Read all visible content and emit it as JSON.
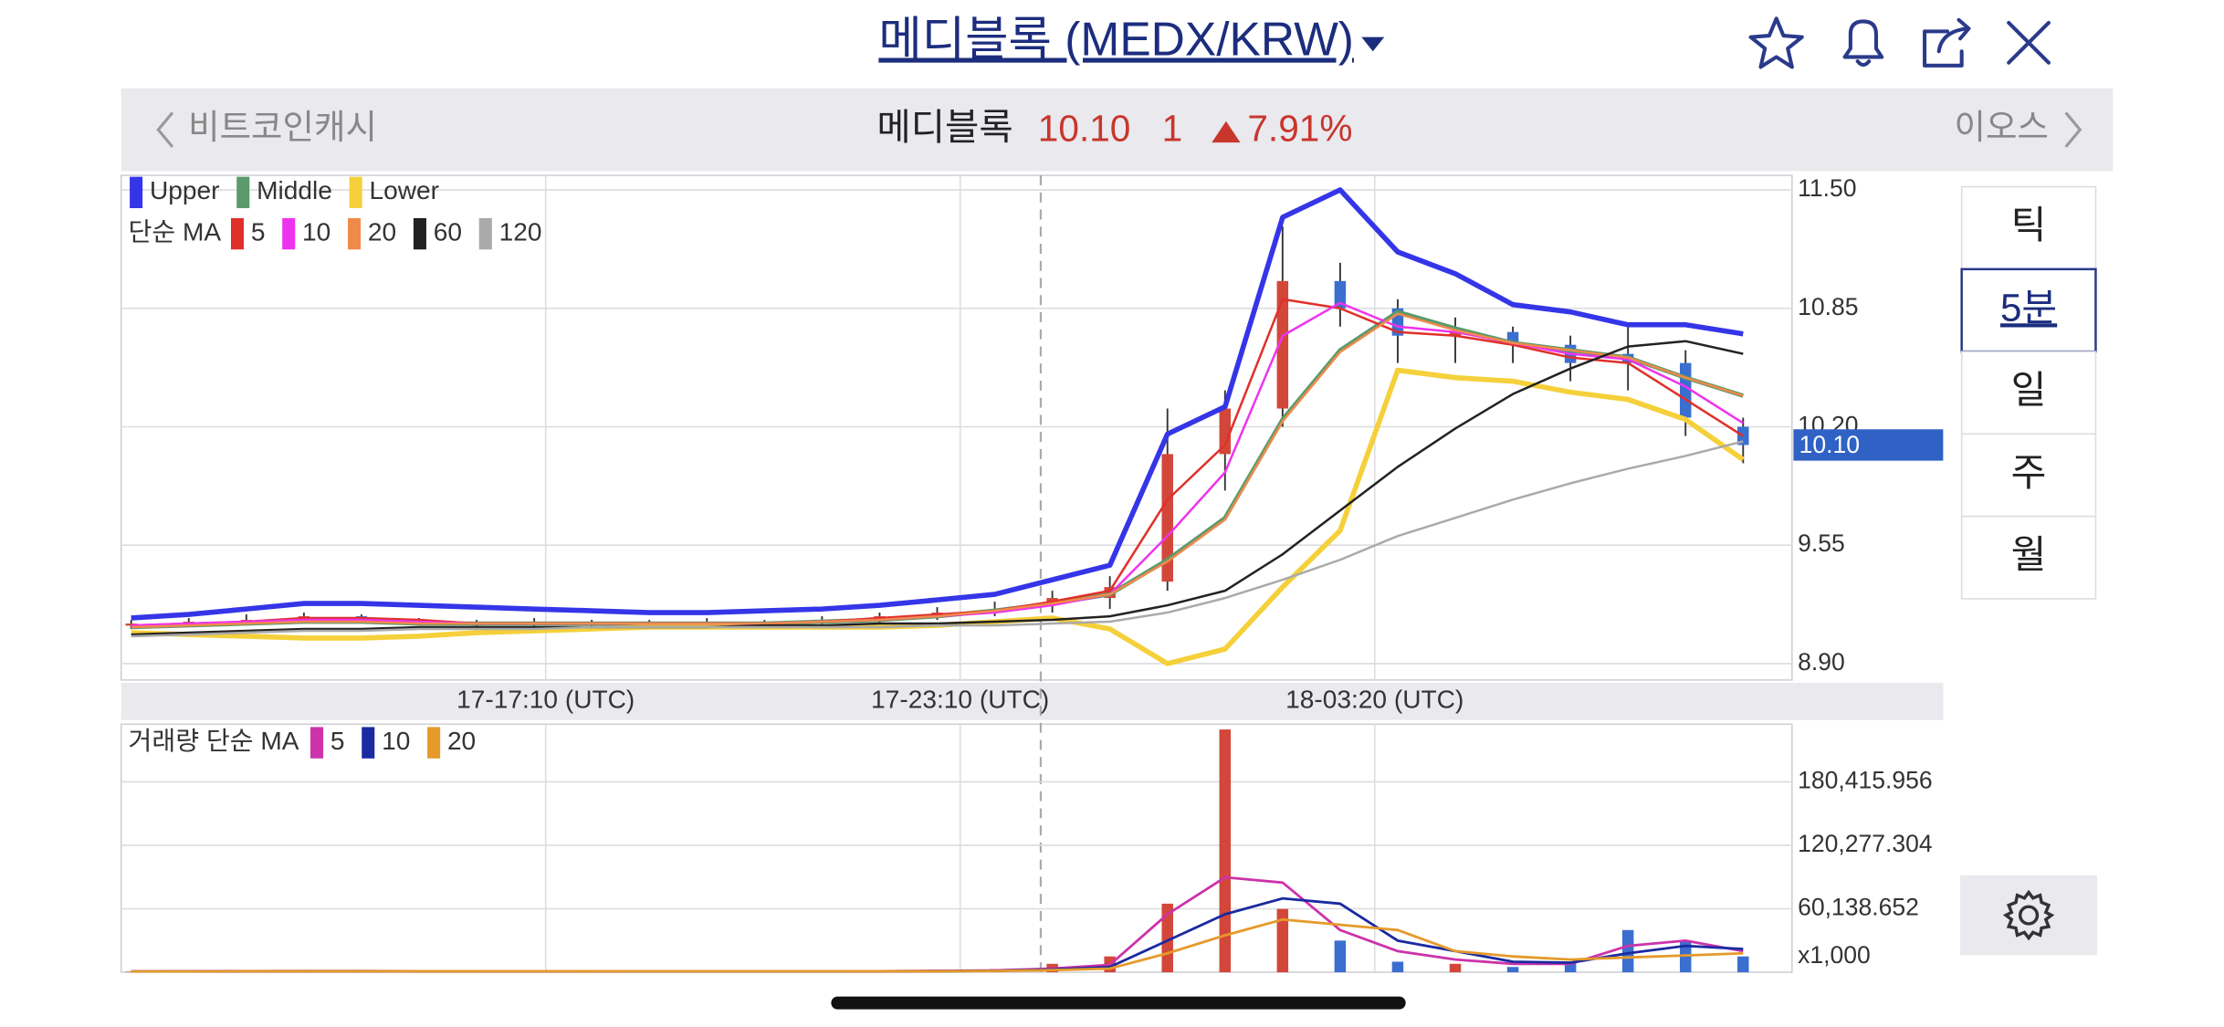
{
  "header": {
    "title": "메디블록 (MEDX/KRW)"
  },
  "ticker": {
    "prev": "비트코인캐시",
    "name": "메디블록",
    "price": "10.10",
    "change": "1",
    "change_pct": "7.91%",
    "next": "이오스"
  },
  "intervals": {
    "options": [
      "틱",
      "5분",
      "일",
      "주",
      "월"
    ],
    "selected": 1
  },
  "chart_data": [
    {
      "type": "candlestick",
      "ma_legend_title": "단순 MA",
      "x": [
        0,
        10,
        20,
        30,
        40,
        50,
        60,
        70,
        80,
        90,
        100,
        110,
        120,
        130,
        140,
        150,
        160,
        170,
        180,
        190,
        200,
        210,
        220,
        230,
        240,
        250,
        260,
        270,
        280
      ],
      "open": [
        9.11,
        9.12,
        9.13,
        9.14,
        9.16,
        9.14,
        9.12,
        9.12,
        9.13,
        9.12,
        9.12,
        9.13,
        9.13,
        9.14,
        9.16,
        9.18,
        9.22,
        9.26,
        9.35,
        10.05,
        10.3,
        11.0,
        10.85,
        10.7,
        10.72,
        10.65,
        10.6,
        10.55,
        10.2
      ],
      "high": [
        9.14,
        9.15,
        9.17,
        9.18,
        9.17,
        9.15,
        9.14,
        9.15,
        9.14,
        9.14,
        9.15,
        9.14,
        9.16,
        9.18,
        9.21,
        9.24,
        9.3,
        9.38,
        10.3,
        10.4,
        11.3,
        11.1,
        10.9,
        10.8,
        10.75,
        10.7,
        10.75,
        10.62,
        10.25
      ],
      "low": [
        9.09,
        9.1,
        9.11,
        9.12,
        9.12,
        9.11,
        9.1,
        9.1,
        9.1,
        9.1,
        9.1,
        9.1,
        9.11,
        9.12,
        9.14,
        9.16,
        9.18,
        9.2,
        9.3,
        9.85,
        10.2,
        10.75,
        10.55,
        10.55,
        10.55,
        10.45,
        10.4,
        10.15,
        10.0
      ],
      "close": [
        9.12,
        9.13,
        9.14,
        9.16,
        9.15,
        9.13,
        9.12,
        9.13,
        9.12,
        9.12,
        9.13,
        9.12,
        9.14,
        9.16,
        9.18,
        9.2,
        9.26,
        9.32,
        10.05,
        10.3,
        11.0,
        10.85,
        10.7,
        10.72,
        10.65,
        10.55,
        10.55,
        10.25,
        10.1
      ],
      "up_color": "#d2473a",
      "down_color": "#3a6fd0",
      "series": [
        {
          "name": "Upper",
          "color": "#3535e8",
          "legend_row": 0,
          "values": [
            9.15,
            9.17,
            9.2,
            9.23,
            9.23,
            9.22,
            9.21,
            9.2,
            9.19,
            9.18,
            9.18,
            9.19,
            9.2,
            9.22,
            9.25,
            9.28,
            9.36,
            9.44,
            10.16,
            10.31,
            11.35,
            11.5,
            11.16,
            11.04,
            10.87,
            10.83,
            10.76,
            10.76,
            10.71
          ]
        },
        {
          "name": "Middle",
          "color": "#5c9a6c",
          "legend_row": 0,
          "values": [
            9.1,
            9.11,
            9.12,
            9.13,
            9.13,
            9.12,
            9.12,
            9.12,
            9.12,
            9.12,
            9.12,
            9.12,
            9.13,
            9.14,
            9.16,
            9.19,
            9.23,
            9.28,
            9.47,
            9.7,
            10.24,
            10.62,
            10.83,
            10.74,
            10.66,
            10.62,
            10.58,
            10.47,
            10.37
          ]
        },
        {
          "name": "Lower",
          "color": "#f5d03a",
          "legend_row": 0,
          "values": [
            9.07,
            9.06,
            9.05,
            9.04,
            9.04,
            9.05,
            9.07,
            9.08,
            9.09,
            9.1,
            9.1,
            9.1,
            9.1,
            9.1,
            9.11,
            9.13,
            9.15,
            9.09,
            8.9,
            8.98,
            9.32,
            9.63,
            10.51,
            10.47,
            10.45,
            10.39,
            10.35,
            10.24,
            10.02
          ]
        },
        {
          "name": "5",
          "color": "#e0302a",
          "legend_row": 1,
          "values": [
            9.11,
            9.12,
            9.13,
            9.15,
            9.15,
            9.14,
            9.12,
            9.12,
            9.12,
            9.12,
            9.12,
            9.12,
            9.13,
            9.15,
            9.17,
            9.19,
            9.24,
            9.3,
            9.8,
            10.1,
            10.9,
            10.85,
            10.72,
            10.7,
            10.65,
            10.58,
            10.55,
            10.35,
            10.15
          ]
        },
        {
          "name": "10",
          "color": "#ee33ee",
          "legend_row": 1,
          "values": [
            9.11,
            9.12,
            9.13,
            9.14,
            9.14,
            9.13,
            9.12,
            9.12,
            9.12,
            9.12,
            9.12,
            9.12,
            9.13,
            9.14,
            9.16,
            9.18,
            9.22,
            9.28,
            9.6,
            9.95,
            10.7,
            10.88,
            10.75,
            10.72,
            10.66,
            10.6,
            10.57,
            10.42,
            10.22
          ]
        },
        {
          "name": "20",
          "color": "#f08a4a",
          "legend_row": 1,
          "values": [
            9.1,
            9.11,
            9.12,
            9.13,
            9.13,
            9.12,
            9.12,
            9.12,
            9.12,
            9.12,
            9.12,
            9.12,
            9.13,
            9.14,
            9.16,
            9.19,
            9.23,
            9.28,
            9.46,
            9.69,
            10.23,
            10.61,
            10.82,
            10.73,
            10.66,
            10.62,
            10.58,
            10.47,
            10.37
          ]
        },
        {
          "name": "60",
          "color": "#222222",
          "legend_row": 1,
          "values": [
            9.06,
            9.07,
            9.08,
            9.09,
            9.09,
            9.1,
            9.1,
            9.1,
            9.1,
            9.1,
            9.1,
            9.11,
            9.11,
            9.12,
            9.12,
            9.13,
            9.14,
            9.16,
            9.22,
            9.3,
            9.5,
            9.74,
            9.98,
            10.19,
            10.38,
            10.52,
            10.64,
            10.67,
            10.6
          ]
        },
        {
          "name": "120",
          "color": "#aaaaaa",
          "legend_row": 1,
          "values": [
            9.05,
            9.06,
            9.07,
            9.08,
            9.08,
            9.09,
            9.09,
            9.09,
            9.1,
            9.1,
            9.1,
            9.1,
            9.1,
            9.1,
            9.11,
            9.11,
            9.12,
            9.13,
            9.18,
            9.26,
            9.36,
            9.47,
            9.6,
            9.7,
            9.8,
            9.89,
            9.97,
            10.04,
            10.12
          ]
        }
      ],
      "xlim": [
        -1,
        288
      ],
      "xticks": [
        {
          "value": 72,
          "label": "17-17:10 (UTC)"
        },
        {
          "value": 144,
          "label": "17-23:10 (UTC)"
        },
        {
          "value": 216,
          "label": "18-03:20 (UTC)"
        }
      ],
      "ylim": [
        8.81,
        11.58
      ],
      "yticks": [
        {
          "value": 8.9,
          "label": "8.90"
        },
        9.55,
        {
          "value": 10.2,
          "label": "10.20"
        },
        10.85,
        {
          "value": 11.5,
          "label": "11.50"
        }
      ],
      "last_price": {
        "value": 10.1,
        "label": "10.10"
      },
      "last_price_color": "#2f62c4",
      "grid": true
    },
    {
      "type": "bar",
      "legend_title": "거래량 단순 MA",
      "unit_label": "x1,000",
      "values": [
        500,
        800,
        2000,
        900,
        1500,
        700,
        600,
        800,
        1200,
        500,
        600,
        900,
        700,
        1500,
        2500,
        3000,
        8000,
        15000,
        65000,
        230000,
        60000,
        30000,
        10000,
        8000,
        5000,
        10000,
        40000,
        30000,
        15000
      ],
      "series": [
        {
          "name": "5",
          "color": "#cc33aa",
          "values": [
            800,
            900,
            1100,
            1100,
            1100,
            1000,
            900,
            800,
            900,
            800,
            800,
            800,
            800,
            1000,
            1300,
            1700,
            3500,
            7000,
            55000,
            90000,
            85000,
            40000,
            20000,
            12000,
            8000,
            8000,
            25000,
            30000,
            20000
          ]
        },
        {
          "name": "10",
          "color": "#1a2aa0",
          "values": [
            800,
            850,
            1000,
            1050,
            1050,
            1000,
            950,
            900,
            900,
            850,
            850,
            850,
            850,
            900,
            1100,
            1400,
            2500,
            5000,
            30000,
            55000,
            70000,
            65000,
            30000,
            20000,
            10000,
            9000,
            18000,
            25000,
            22000
          ]
        },
        {
          "name": "20",
          "color": "#e59a2a",
          "values": [
            800,
            850,
            900,
            950,
            1000,
            1000,
            1000,
            950,
            950,
            900,
            900,
            900,
            900,
            900,
            1000,
            1200,
            2000,
            3500,
            18000,
            35000,
            50000,
            45000,
            40000,
            20000,
            15000,
            12000,
            14000,
            16000,
            18000
          ]
        }
      ],
      "ylim": [
        0,
        235000
      ],
      "yticks": [
        {
          "value": 60138.652,
          "label": "60,138.652"
        },
        {
          "value": 120277.304,
          "label": "120,277.304"
        },
        {
          "value": 180415.956,
          "label": "180,415.956"
        }
      ],
      "grid": true
    }
  ]
}
